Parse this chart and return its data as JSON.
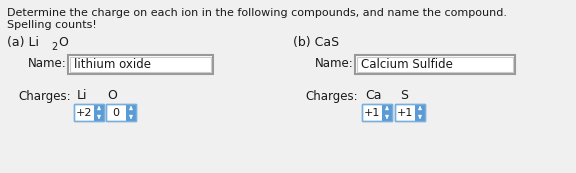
{
  "bg_color": "#f0f0f0",
  "title_line1": "Determine the charge on each ion in the following compounds, and name the compound.",
  "title_line2": "Spelling counts!",
  "section_a_header": "(a) Li",
  "section_a_sub": "2",
  "section_a_end": "O",
  "section_b_header": "(b) CaS",
  "name_label": "Name:",
  "charges_label": "Charges:",
  "section_a_name": "lithium oxide",
  "section_b_name": "Calcium Sulfide",
  "section_a_ions": [
    "Li",
    "O"
  ],
  "section_b_ions": [
    "Ca",
    "S"
  ],
  "section_a_charges": [
    "+2",
    "0"
  ],
  "section_b_charges": [
    "+1",
    "+1"
  ],
  "text_color": "#1a1a1a",
  "box_fill": "#ffffff",
  "box_edge_outer": "#999999",
  "box_edge_inner": "#cccccc",
  "spinner_fill": "#5b9bd5",
  "spinner_arrow": "#ffffff",
  "font_size_title": 8.0,
  "font_size_section": 9.0,
  "font_size_name": 8.5,
  "font_size_ion": 9.0,
  "font_size_charge": 8.0
}
